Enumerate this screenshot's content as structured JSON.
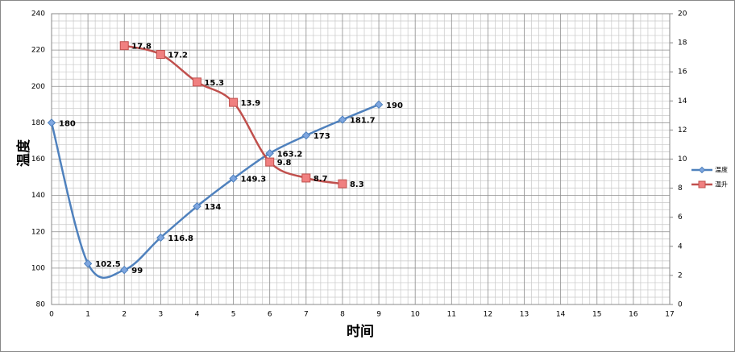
{
  "chart_data": {
    "type": "line",
    "xlabel": "时间",
    "ylabel": "温度",
    "xlim": [
      0,
      17
    ],
    "xticks": [
      0,
      1,
      2,
      3,
      4,
      5,
      6,
      7,
      8,
      9,
      10,
      11,
      12,
      13,
      14,
      15,
      16,
      17
    ],
    "ylim": [
      80,
      240
    ],
    "yticks": [
      80,
      100,
      120,
      140,
      160,
      180,
      200,
      220,
      240
    ],
    "y2lim": [
      0,
      20
    ],
    "y2ticks": [
      0,
      2,
      4,
      6,
      8,
      10,
      12,
      14,
      16,
      18,
      20
    ],
    "grid": true,
    "legend": "right",
    "series": [
      {
        "name": "温度",
        "color": "#4f81bd",
        "x": [
          0,
          1,
          2,
          3,
          4,
          5,
          6,
          7,
          8,
          9
        ],
        "values": [
          180,
          102.5,
          99,
          116.8,
          134,
          149.3,
          163.2,
          173,
          181.7,
          190
        ]
      },
      {
        "name": "温升",
        "color": "#c0504d",
        "axis": "y2",
        "x": [
          2,
          3,
          4,
          5,
          6,
          7,
          8
        ],
        "values": [
          17.8,
          17.2,
          15.3,
          13.9,
          9.8,
          8.7,
          8.3
        ]
      }
    ]
  }
}
